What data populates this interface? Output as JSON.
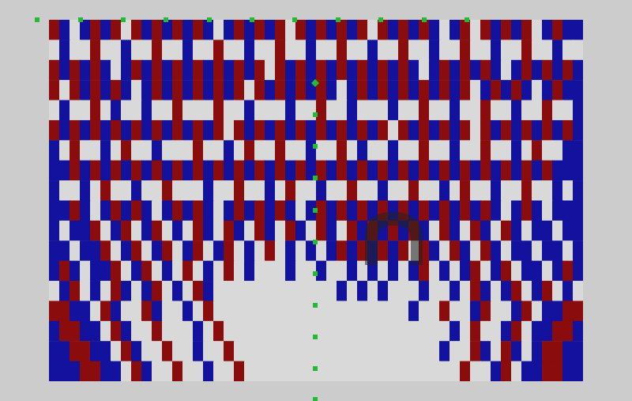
{
  "chart_data": {
    "type": "heatmap",
    "tick_labels": false,
    "zlim": [
      -1,
      1
    ],
    "cells": [
      [
        1,
        -1,
        0,
        -1,
        1,
        -1,
        1,
        0,
        1,
        -1,
        1,
        -1,
        1,
        -1,
        1,
        -1,
        0,
        -1,
        1,
        -1,
        1,
        -1,
        1,
        0,
        1,
        -1,
        1,
        -1,
        1,
        -1,
        1,
        0,
        1,
        -1,
        1,
        -1,
        1,
        -1,
        0,
        -1,
        1,
        0,
        1,
        -1,
        1,
        -1,
        1,
        0,
        -1,
        1,
        -1,
        -1
      ],
      [
        0,
        -1,
        0,
        0,
        1,
        0,
        0,
        -1,
        0,
        0,
        1,
        0,
        0,
        -1,
        0,
        0,
        1,
        0,
        0,
        -1,
        0,
        0,
        1,
        0,
        0,
        -1,
        0,
        0,
        1,
        0,
        0,
        -1,
        0,
        0,
        1,
        0,
        0,
        -1,
        0,
        0,
        1,
        0,
        0,
        -1,
        0,
        0,
        1,
        0,
        0,
        -1,
        0,
        0
      ],
      [
        1,
        -1,
        1,
        -1,
        1,
        -1,
        0,
        -1,
        1,
        -1,
        1,
        -1,
        1,
        -1,
        1,
        -1,
        1,
        -1,
        1,
        -1,
        1,
        0,
        1,
        -1,
        1,
        -1,
        1,
        -1,
        1,
        -1,
        1,
        -1,
        1,
        -1,
        1,
        -1,
        0,
        -1,
        1,
        -1,
        1,
        -1,
        1,
        -1,
        0,
        -1,
        1,
        -1,
        1,
        -1,
        1,
        -1
      ],
      [
        1,
        0,
        1,
        -1,
        1,
        -1,
        1,
        -1,
        0,
        -1,
        1,
        -1,
        1,
        -1,
        1,
        -1,
        1,
        -1,
        1,
        0,
        1,
        -1,
        1,
        -1,
        1,
        -1,
        1,
        -1,
        0,
        -1,
        1,
        -1,
        1,
        -1,
        1,
        -1,
        1,
        -1,
        1,
        -1,
        1,
        0,
        -1,
        1,
        -1,
        1,
        -1,
        0,
        -1,
        1,
        -1,
        -1
      ],
      [
        0,
        -1,
        0,
        0,
        1,
        0,
        -1,
        0,
        0,
        -1,
        0,
        0,
        1,
        0,
        0,
        0,
        1,
        0,
        0,
        -1,
        0,
        0,
        0,
        -1,
        0,
        0,
        1,
        0,
        0,
        -1,
        0,
        0,
        0,
        -1,
        0,
        0,
        1,
        0,
        0,
        -1,
        0,
        0,
        1,
        0,
        0,
        -1,
        0,
        0,
        1,
        0,
        0,
        -1
      ],
      [
        1,
        -1,
        1,
        -1,
        1,
        -1,
        1,
        -1,
        1,
        -1,
        1,
        -1,
        1,
        -1,
        1,
        -1,
        1,
        0,
        1,
        -1,
        1,
        -1,
        1,
        -1,
        1,
        -1,
        1,
        -1,
        1,
        -1,
        1,
        -1,
        1,
        0,
        1,
        -1,
        1,
        -1,
        1,
        -1,
        1,
        0,
        1,
        -1,
        1,
        -1,
        1,
        -1,
        1,
        -1,
        1,
        -1
      ],
      [
        -1,
        0,
        1,
        0,
        0,
        -1,
        0,
        1,
        0,
        0,
        -1,
        0,
        0,
        0,
        1,
        0,
        0,
        -1,
        0,
        1,
        0,
        0,
        1,
        0,
        0,
        -1,
        0,
        0,
        1,
        0,
        -1,
        0,
        0,
        -1,
        0,
        0,
        1,
        0,
        0,
        -1,
        0,
        0,
        1,
        0,
        0,
        -1,
        0,
        1,
        0,
        0,
        -1,
        -1
      ],
      [
        -1,
        -1,
        1,
        -1,
        1,
        -1,
        1,
        -1,
        1,
        -1,
        1,
        -1,
        1,
        -1,
        1,
        -1,
        1,
        -1,
        1,
        -1,
        1,
        -1,
        1,
        -1,
        1,
        -1,
        1,
        -1,
        1,
        -1,
        1,
        -1,
        1,
        -1,
        1,
        -1,
        1,
        -1,
        1,
        -1,
        1,
        -1,
        1,
        -1,
        1,
        -1,
        1,
        -1,
        1,
        -1,
        -1,
        -1
      ],
      [
        -1,
        0,
        0,
        -1,
        0,
        1,
        0,
        0,
        -1,
        0,
        0,
        1,
        0,
        0,
        0,
        -1,
        0,
        0,
        1,
        0,
        0,
        -1,
        0,
        1,
        0,
        0,
        -1,
        0,
        0,
        1,
        0,
        0,
        -1,
        0,
        0,
        1,
        0,
        0,
        -1,
        0,
        1,
        0,
        0,
        -1,
        0,
        0,
        1,
        0,
        0,
        -1,
        0,
        -1
      ],
      [
        -1,
        -1,
        1,
        -1,
        0,
        -1,
        1,
        -1,
        1,
        -1,
        0,
        -1,
        1,
        -1,
        1,
        -1,
        0,
        -1,
        1,
        -1,
        1,
        -1,
        1,
        -1,
        0,
        -1,
        1,
        -1,
        1,
        -1,
        1,
        -1,
        1,
        -1,
        1,
        -1,
        1,
        -1,
        1,
        -1,
        1,
        -1,
        1,
        -1,
        0,
        -1,
        1,
        -1,
        0,
        -1,
        -1,
        -1
      ],
      [
        -1,
        0,
        -1,
        -1,
        1,
        0,
        -1,
        1,
        0,
        -1,
        1,
        0,
        -1,
        0,
        1,
        -1,
        0,
        1,
        -1,
        0,
        1,
        -1,
        0,
        1,
        -1,
        0,
        1,
        -1,
        0,
        1,
        -1,
        1,
        -1,
        1,
        -1,
        1,
        -1,
        0,
        1,
        -1,
        0,
        1,
        -1,
        0,
        1,
        -1,
        0,
        -1,
        -1,
        0,
        -1,
        -1
      ],
      [
        -1,
        -1,
        0,
        -1,
        -1,
        1,
        0,
        -1,
        1,
        0,
        -1,
        1,
        0,
        -1,
        1,
        0,
        -1,
        1,
        0,
        -1,
        0,
        1,
        0,
        -1,
        0,
        -1,
        0,
        -1,
        1,
        -1,
        1,
        -1,
        1,
        -1,
        1,
        0,
        1,
        -1,
        0,
        1,
        -1,
        0,
        1,
        -1,
        0,
        -1,
        -1,
        0,
        -1,
        -1,
        0,
        -1
      ],
      [
        -1,
        1,
        -1,
        0,
        -1,
        -1,
        1,
        0,
        -1,
        1,
        0,
        -1,
        0,
        1,
        0,
        -1,
        0,
        1,
        0,
        -1,
        0,
        0,
        0,
        -1,
        0,
        0,
        -1,
        0,
        0,
        -1,
        0,
        -1,
        0,
        -1,
        0,
        -1,
        1,
        0,
        -1,
        0,
        -1,
        1,
        0,
        -1,
        1,
        0,
        -1,
        -1,
        0,
        -1,
        1,
        -1
      ],
      [
        0,
        -1,
        1,
        0,
        -1,
        0,
        1,
        -1,
        0,
        -1,
        1,
        0,
        -1,
        0,
        1,
        -1,
        0,
        0,
        0,
        0,
        0,
        0,
        0,
        0,
        0,
        0,
        0,
        0,
        -1,
        0,
        -1,
        0,
        -1,
        0,
        0,
        0,
        -1,
        0,
        0,
        -1,
        0,
        1,
        -1,
        0,
        -1,
        1,
        0,
        -1,
        1,
        0,
        -1,
        0
      ],
      [
        1,
        1,
        -1,
        -1,
        0,
        1,
        -1,
        0,
        0,
        1,
        -1,
        0,
        0,
        -1,
        0,
        1,
        0,
        0,
        0,
        0,
        0,
        0,
        0,
        0,
        0,
        0,
        0,
        0,
        0,
        0,
        0,
        0,
        0,
        0,
        0,
        -1,
        0,
        0,
        1,
        0,
        0,
        -1,
        1,
        0,
        0,
        -1,
        1,
        0,
        -1,
        -1,
        1,
        1
      ],
      [
        -1,
        1,
        1,
        -1,
        -1,
        0,
        1,
        -1,
        0,
        0,
        1,
        0,
        0,
        0,
        -1,
        0,
        1,
        0,
        0,
        0,
        0,
        0,
        0,
        0,
        0,
        0,
        0,
        0,
        0,
        0,
        0,
        0,
        0,
        0,
        0,
        0,
        0,
        0,
        0,
        -1,
        0,
        1,
        0,
        0,
        -1,
        1,
        0,
        -1,
        -1,
        1,
        1,
        -1
      ],
      [
        -1,
        -1,
        1,
        1,
        -1,
        -1,
        0,
        1,
        -1,
        0,
        0,
        1,
        0,
        0,
        -1,
        0,
        0,
        1,
        0,
        0,
        0,
        0,
        0,
        0,
        0,
        0,
        0,
        0,
        0,
        0,
        0,
        0,
        0,
        0,
        0,
        0,
        0,
        0,
        -1,
        0,
        0,
        1,
        -1,
        0,
        1,
        -1,
        0,
        -1,
        1,
        1,
        -1,
        -1
      ],
      [
        -1,
        -1,
        -1,
        1,
        1,
        -1,
        -1,
        0,
        1,
        -1,
        0,
        0,
        1,
        0,
        0,
        -1,
        0,
        0,
        1,
        0,
        0,
        0,
        0,
        0,
        0,
        0,
        0,
        0,
        0,
        0,
        0,
        0,
        0,
        0,
        0,
        0,
        0,
        0,
        0,
        0,
        1,
        0,
        0,
        -1,
        1,
        0,
        -1,
        -1,
        1,
        1,
        -1,
        -1
      ]
    ]
  }
}
